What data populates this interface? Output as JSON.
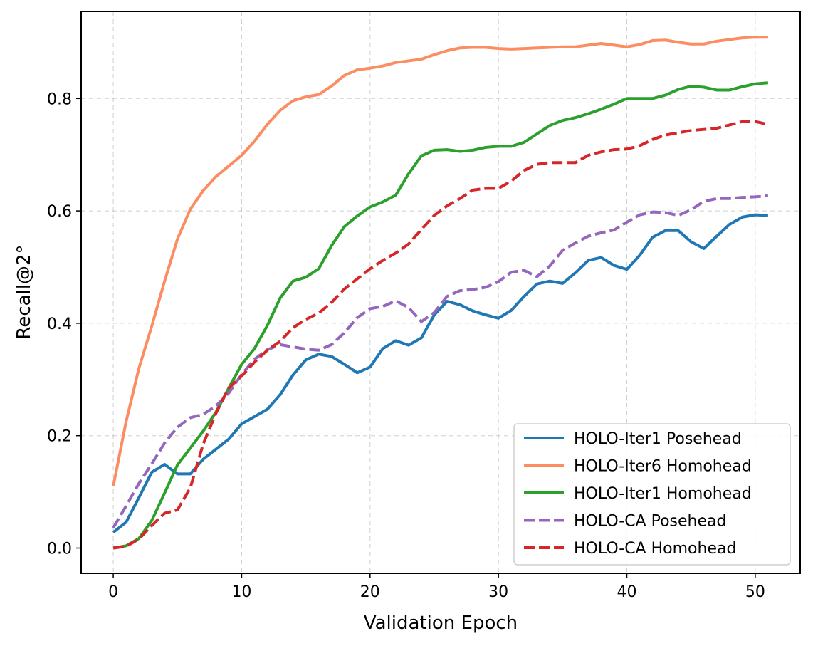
{
  "chart_data": {
    "type": "line",
    "title": "",
    "xlabel": "Validation Epoch",
    "ylabel": "Recall@2°",
    "xlim": [
      -2.5,
      53.5
    ],
    "ylim": [
      -0.045,
      0.955
    ],
    "xticks": [
      0,
      10,
      20,
      30,
      40,
      50
    ],
    "yticks": [
      0.0,
      0.2,
      0.4,
      0.6,
      0.8
    ],
    "xtick_labels": [
      "0",
      "10",
      "20",
      "30",
      "40",
      "50"
    ],
    "ytick_labels": [
      "0.0",
      "0.2",
      "0.4",
      "0.6",
      "0.8"
    ],
    "grid": true,
    "legend_position": "bottom-right",
    "series": [
      {
        "name": "HOLO-Iter1 Posehead",
        "color": "#1f77b4",
        "dash": "solid",
        "values": [
          0.028,
          0.046,
          0.09,
          0.135,
          0.149,
          0.132,
          0.132,
          0.158,
          0.176,
          0.194,
          0.221,
          0.234,
          0.247,
          0.273,
          0.308,
          0.335,
          0.345,
          0.341,
          0.327,
          0.312,
          0.322,
          0.355,
          0.369,
          0.361,
          0.374,
          0.415,
          0.439,
          0.433,
          0.422,
          0.415,
          0.409,
          0.423,
          0.448,
          0.47,
          0.475,
          0.471,
          0.49,
          0.512,
          0.517,
          0.503,
          0.496,
          0.521,
          0.553,
          0.565,
          0.565,
          0.545,
          0.533,
          0.555,
          0.576,
          0.589,
          0.593,
          0.592
        ]
      },
      {
        "name": "HOLO-Iter6 Homohead",
        "color": "#fc8d62",
        "dash": "solid",
        "values": [
          0.11,
          0.225,
          0.32,
          0.395,
          0.475,
          0.55,
          0.603,
          0.636,
          0.661,
          0.68,
          0.699,
          0.724,
          0.754,
          0.779,
          0.796,
          0.803,
          0.807,
          0.822,
          0.841,
          0.851,
          0.854,
          0.858,
          0.864,
          0.867,
          0.87,
          0.878,
          0.885,
          0.89,
          0.891,
          0.891,
          0.889,
          0.888,
          0.889,
          0.89,
          0.891,
          0.892,
          0.892,
          0.895,
          0.898,
          0.895,
          0.892,
          0.896,
          0.903,
          0.904,
          0.9,
          0.897,
          0.897,
          0.902,
          0.905,
          0.908,
          0.909,
          0.909
        ]
      },
      {
        "name": "HOLO-Iter1 Homohead",
        "color": "#2ca02c",
        "dash": "solid",
        "values": [
          0.0,
          0.004,
          0.017,
          0.049,
          0.098,
          0.148,
          0.178,
          0.208,
          0.242,
          0.285,
          0.327,
          0.355,
          0.396,
          0.445,
          0.475,
          0.482,
          0.497,
          0.538,
          0.572,
          0.591,
          0.607,
          0.616,
          0.628,
          0.666,
          0.698,
          0.708,
          0.709,
          0.706,
          0.708,
          0.713,
          0.715,
          0.715,
          0.722,
          0.737,
          0.752,
          0.761,
          0.766,
          0.773,
          0.781,
          0.79,
          0.8,
          0.8,
          0.8,
          0.806,
          0.816,
          0.822,
          0.82,
          0.815,
          0.815,
          0.821,
          0.826,
          0.828
        ]
      },
      {
        "name": "HOLO-CA Posehead",
        "color": "#9467bd",
        "dash": "dashed",
        "values": [
          0.036,
          0.075,
          0.115,
          0.15,
          0.187,
          0.215,
          0.232,
          0.238,
          0.253,
          0.276,
          0.309,
          0.336,
          0.353,
          0.362,
          0.358,
          0.354,
          0.352,
          0.362,
          0.383,
          0.41,
          0.426,
          0.43,
          0.44,
          0.428,
          0.403,
          0.419,
          0.448,
          0.458,
          0.46,
          0.464,
          0.474,
          0.491,
          0.494,
          0.483,
          0.502,
          0.53,
          0.543,
          0.555,
          0.561,
          0.566,
          0.58,
          0.593,
          0.598,
          0.597,
          0.592,
          0.602,
          0.617,
          0.622,
          0.622,
          0.624,
          0.625,
          0.627
        ]
      },
      {
        "name": "HOLO-CA Homohead",
        "color": "#d62728",
        "dash": "dashed",
        "values": [
          0.0,
          0.003,
          0.016,
          0.04,
          0.062,
          0.068,
          0.107,
          0.185,
          0.24,
          0.285,
          0.306,
          0.331,
          0.352,
          0.368,
          0.392,
          0.407,
          0.418,
          0.437,
          0.461,
          0.479,
          0.497,
          0.512,
          0.525,
          0.541,
          0.567,
          0.592,
          0.609,
          0.622,
          0.637,
          0.64,
          0.64,
          0.653,
          0.672,
          0.683,
          0.686,
          0.686,
          0.686,
          0.699,
          0.705,
          0.709,
          0.71,
          0.716,
          0.727,
          0.735,
          0.739,
          0.743,
          0.745,
          0.747,
          0.753,
          0.759,
          0.759,
          0.754
        ]
      }
    ]
  }
}
